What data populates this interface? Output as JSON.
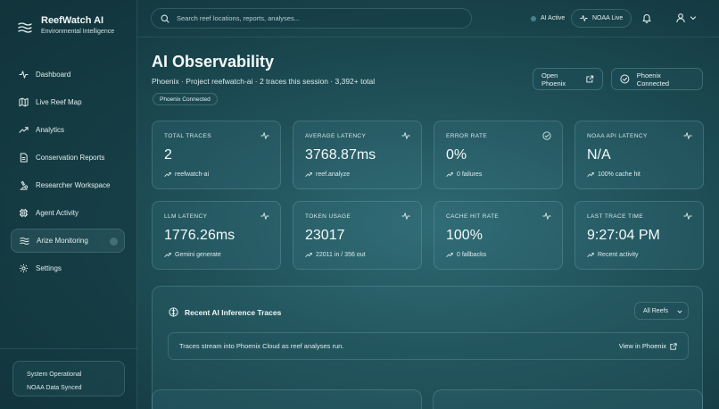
{
  "brand": {
    "name": "ReefWatch AI",
    "subtitle": "Environmental Intelligence"
  },
  "sidebar": {
    "items": [
      {
        "label": "Dashboard",
        "icon": "activity-icon"
      },
      {
        "label": "Live Reef Map",
        "icon": "map-icon"
      },
      {
        "label": "Analytics",
        "icon": "trending-up-icon"
      },
      {
        "label": "Conservation Reports",
        "icon": "document-icon"
      },
      {
        "label": "Researcher Workspace",
        "icon": "microscope-icon"
      },
      {
        "label": "Agent Activity",
        "icon": "cpu-icon"
      },
      {
        "label": "Arize Monitoring",
        "icon": "waves-icon",
        "active": true
      },
      {
        "label": "Settings",
        "icon": "gear-icon"
      }
    ],
    "status": {
      "line1": "System Operational",
      "line2": "NOAA Data Synced"
    }
  },
  "topbar": {
    "search_placeholder": "Search reef locations, reports, analyses...",
    "ai_status": "AI Active",
    "noaa_status": "NOAA Live"
  },
  "page": {
    "title": "AI Observability",
    "subtitle": "Phoenix · Project reefwatch-ai · 2 traces this session · 3,392+ total",
    "badge": "Phoenix Connected",
    "open_button": "Open Phoenix",
    "connected_button": "Phoenix Connected"
  },
  "metrics": [
    {
      "label": "TOTAL TRACES",
      "value": "2",
      "sub": "reefwatch-ai",
      "icon": "activity-icon"
    },
    {
      "label": "AVERAGE LATENCY",
      "value": "3768.87ms",
      "sub": "reef.analyze",
      "icon": "activity-icon"
    },
    {
      "label": "ERROR RATE",
      "value": "0%",
      "sub": "0 failures",
      "icon": "check-circle-icon"
    },
    {
      "label": "NOAA API LATENCY",
      "value": "N/A",
      "sub": "100% cache hit",
      "icon": "activity-icon"
    },
    {
      "label": "LLM LATENCY",
      "value": "1776.26ms",
      "sub": "Gemini generate",
      "icon": "activity-icon"
    },
    {
      "label": "TOKEN USAGE",
      "value": "23017",
      "sub": "22011 in / 356 out",
      "icon": "activity-icon"
    },
    {
      "label": "CACHE HIT RATE",
      "value": "100%",
      "sub": "0 fallbacks",
      "icon": "activity-icon"
    },
    {
      "label": "LAST TRACE TIME",
      "value": "9:27:04 PM",
      "sub": "Recent activity",
      "icon": "activity-icon"
    }
  ],
  "traces": {
    "title": "Recent AI Inference Traces",
    "filter": "All Reefs",
    "message": "Traces stream into Phoenix Cloud as reef analyses run.",
    "link": "View in Phoenix"
  },
  "colors": {
    "accent": "#2f6a73",
    "background": "#163e46",
    "text": "#e6f1f2"
  }
}
